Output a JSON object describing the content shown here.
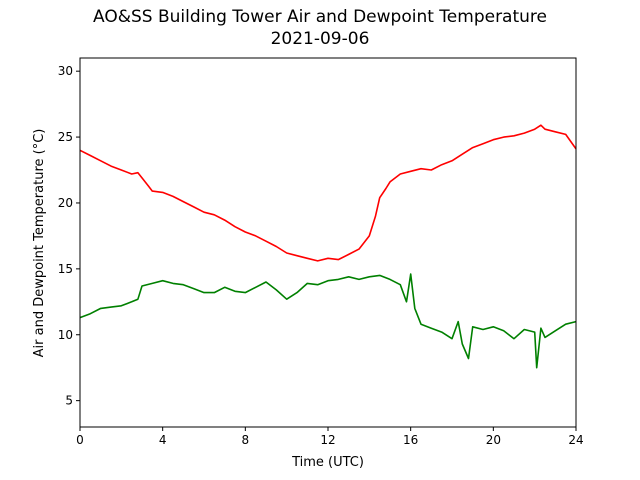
{
  "chart_data": {
    "type": "line",
    "title": "AO&SS Building Tower Air and Dewpoint Temperature",
    "subtitle": "2021-09-06",
    "xlabel": "Time (UTC)",
    "ylabel": "Air and Dewpoint Temperature (°C)",
    "xlim": [
      0,
      24
    ],
    "ylim": [
      3,
      31
    ],
    "xticks": [
      0,
      4,
      8,
      12,
      16,
      20,
      24
    ],
    "yticks": [
      5,
      10,
      15,
      20,
      25,
      30
    ],
    "grid": false,
    "series": [
      {
        "color": "#ff0000",
        "x": [
          0,
          0.5,
          1,
          1.5,
          2,
          2.5,
          2.8,
          3,
          3.3,
          3.5,
          4,
          4.5,
          5,
          5.5,
          6,
          6.5,
          7,
          7.5,
          8,
          8.5,
          9,
          9.5,
          10,
          10.5,
          11,
          11.5,
          12,
          12.5,
          13,
          13.5,
          14,
          14.3,
          14.5,
          14.8,
          15,
          15.5,
          16,
          16.5,
          17,
          17.5,
          18,
          18.5,
          19,
          19.5,
          20,
          20.5,
          21,
          21.5,
          22,
          22.3,
          22.5,
          23,
          23.5,
          24
        ],
        "values": [
          24.0,
          23.6,
          23.2,
          22.8,
          22.5,
          22.2,
          22.3,
          21.9,
          21.3,
          20.9,
          20.8,
          20.5,
          20.1,
          19.7,
          19.3,
          19.1,
          18.7,
          18.2,
          17.8,
          17.5,
          17.1,
          16.7,
          16.2,
          16.0,
          15.8,
          15.6,
          15.8,
          15.7,
          16.1,
          16.5,
          17.5,
          19.0,
          20.4,
          21.1,
          21.6,
          22.2,
          22.4,
          22.6,
          22.5,
          22.9,
          23.2,
          23.7,
          24.2,
          24.5,
          24.8,
          25.0,
          25.1,
          25.3,
          25.6,
          25.9,
          25.6,
          25.4,
          25.2,
          24.1
        ]
      },
      {
        "color": "#008000",
        "x": [
          0,
          0.5,
          1,
          1.5,
          2,
          2.5,
          2.8,
          3,
          3.5,
          4,
          4.5,
          5,
          5.5,
          6,
          6.5,
          7,
          7.5,
          8,
          8.5,
          9,
          9.5,
          10,
          10.5,
          11,
          11.5,
          12,
          12.5,
          13,
          13.5,
          14,
          14.5,
          15,
          15.5,
          15.8,
          16,
          16.2,
          16.5,
          17,
          17.5,
          18,
          18.3,
          18.5,
          18.8,
          19,
          19.5,
          20,
          20.5,
          21,
          21.5,
          22,
          22.1,
          22.3,
          22.5,
          23,
          23.5,
          24
        ],
        "values": [
          11.3,
          11.6,
          12.0,
          12.1,
          12.2,
          12.5,
          12.7,
          13.7,
          13.9,
          14.1,
          13.9,
          13.8,
          13.5,
          13.2,
          13.2,
          13.6,
          13.3,
          13.2,
          13.6,
          14.0,
          13.4,
          12.7,
          13.2,
          13.9,
          13.8,
          14.1,
          14.2,
          14.4,
          14.2,
          14.4,
          14.5,
          14.2,
          13.8,
          12.5,
          14.6,
          12.0,
          10.8,
          10.5,
          10.2,
          9.7,
          11.0,
          9.3,
          8.2,
          10.6,
          10.4,
          10.6,
          10.3,
          9.7,
          10.4,
          10.2,
          7.5,
          10.5,
          9.8,
          10.3,
          10.8,
          11.0
        ]
      }
    ]
  }
}
